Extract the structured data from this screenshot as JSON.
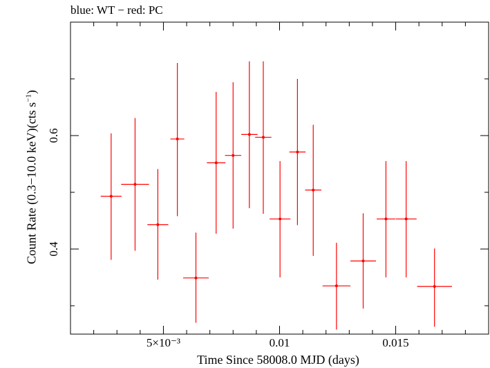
{
  "chart_data": {
    "type": "scatter",
    "title": "blue: WT − red: PC",
    "xlabel": "Time Since 58008.0 MJD (days)",
    "ylabel": "Count Rate (0.3−10.0 keV)(cts s⁻¹)",
    "xlim": [
      0.001,
      0.019
    ],
    "ylim": [
      0.25,
      0.8
    ],
    "x_ticks": [
      {
        "value": 0.005,
        "label": "5×10⁻³"
      },
      {
        "value": 0.01,
        "label": "0.01"
      },
      {
        "value": 0.015,
        "label": "0.015"
      }
    ],
    "y_ticks": [
      {
        "value": 0.4,
        "label": "0.4"
      },
      {
        "value": 0.6,
        "label": "0.6"
      }
    ],
    "grid": false,
    "series": [
      {
        "color": "#ff0000",
        "points": [
          {
            "x": 0.00275,
            "y": 0.493,
            "xerr": 0.00045,
            "ylo": 0.381,
            "yhi": 0.604
          },
          {
            "x": 0.00378,
            "y": 0.514,
            "xerr": 0.0006,
            "ylo": 0.397,
            "yhi": 0.631
          },
          {
            "x": 0.00476,
            "y": 0.443,
            "xerr": 0.00045,
            "ylo": 0.346,
            "yhi": 0.541
          },
          {
            "x": 0.0056,
            "y": 0.594,
            "xerr": 0.0003,
            "ylo": 0.458,
            "yhi": 0.728
          },
          {
            "x": 0.0064,
            "y": 0.349,
            "xerr": 0.00055,
            "ylo": 0.27,
            "yhi": 0.429
          },
          {
            "x": 0.00727,
            "y": 0.552,
            "xerr": 0.0004,
            "ylo": 0.427,
            "yhi": 0.677
          },
          {
            "x": 0.008,
            "y": 0.565,
            "xerr": 0.00035,
            "ylo": 0.436,
            "yhi": 0.694
          },
          {
            "x": 0.0087,
            "y": 0.602,
            "xerr": 0.00035,
            "ylo": 0.472,
            "yhi": 0.731
          },
          {
            "x": 0.0093,
            "y": 0.597,
            "xerr": 0.00035,
            "ylo": 0.462,
            "yhi": 0.731
          },
          {
            "x": 0.01002,
            "y": 0.453,
            "xerr": 0.00045,
            "ylo": 0.35,
            "yhi": 0.555
          },
          {
            "x": 0.01077,
            "y": 0.571,
            "xerr": 0.00035,
            "ylo": 0.442,
            "yhi": 0.7
          },
          {
            "x": 0.01145,
            "y": 0.504,
            "xerr": 0.00035,
            "ylo": 0.388,
            "yhi": 0.619
          },
          {
            "x": 0.01245,
            "y": 0.335,
            "xerr": 0.0006,
            "ylo": 0.258,
            "yhi": 0.411
          },
          {
            "x": 0.0136,
            "y": 0.379,
            "xerr": 0.00055,
            "ylo": 0.295,
            "yhi": 0.463
          },
          {
            "x": 0.01458,
            "y": 0.453,
            "xerr": 0.0004,
            "ylo": 0.35,
            "yhi": 0.555
          },
          {
            "x": 0.01545,
            "y": 0.453,
            "xerr": 0.00045,
            "ylo": 0.35,
            "yhi": 0.555
          },
          {
            "x": 0.01667,
            "y": 0.334,
            "xerr": 0.00075,
            "ylo": 0.263,
            "yhi": 0.401
          }
        ]
      }
    ]
  }
}
